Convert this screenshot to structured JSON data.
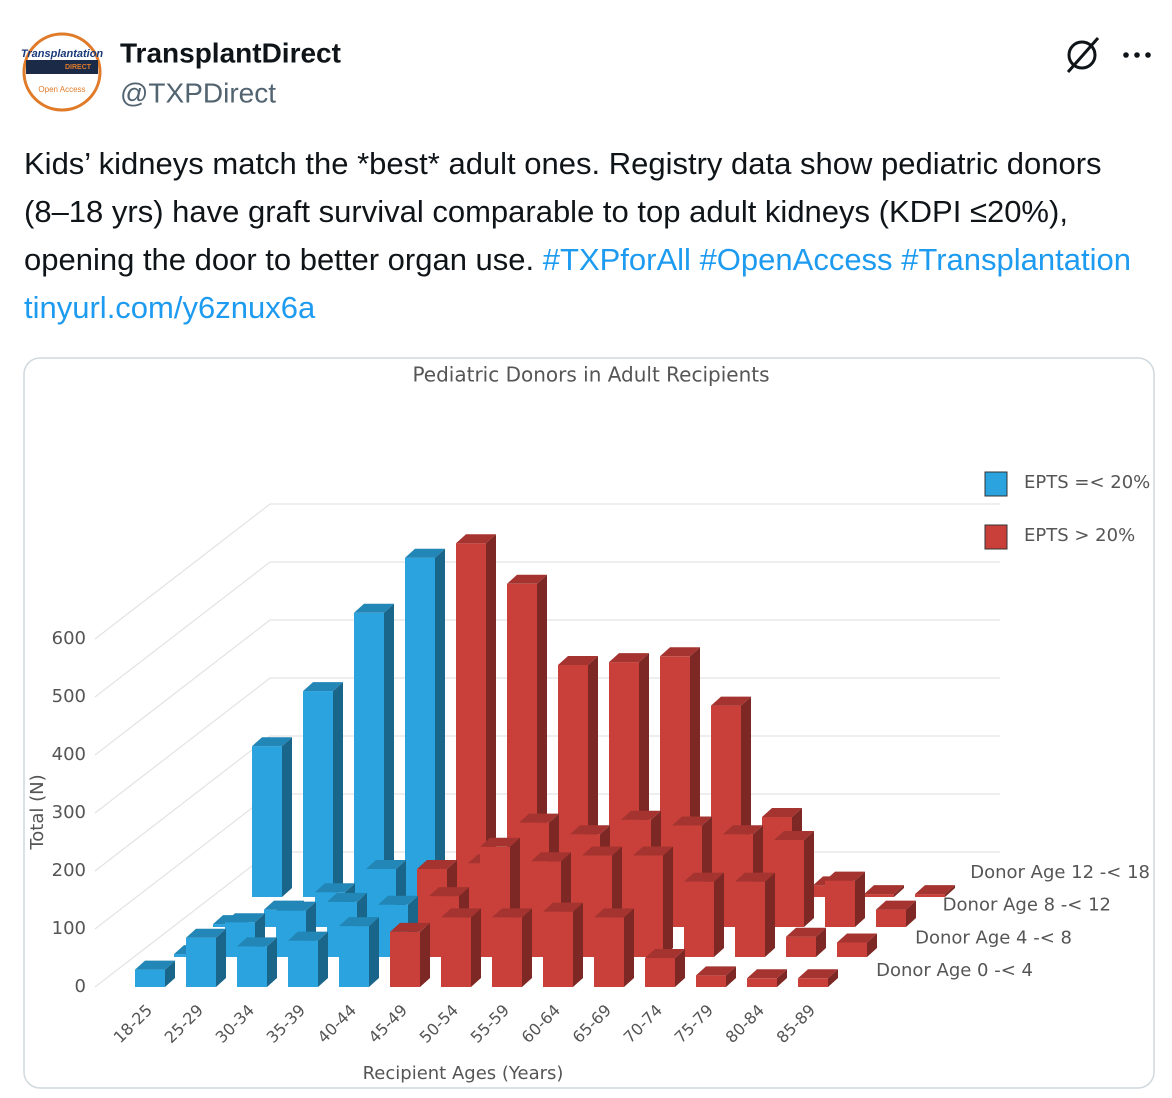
{
  "tweet": {
    "author": {
      "name": "TransplantDirect",
      "handle": "@TXPDirect"
    },
    "avatar": {
      "line1": "Transplantation",
      "line2": "DIRECT",
      "line3": "Open Access"
    },
    "body": [
      {
        "text": "Kids’ kidneys match the *best* adult ones. Registry data show pediatric donors (8–18 yrs) have graft survival comparable to top adult kidneys (KDPI ≤20%), opening the door to better organ use. ",
        "link": false
      },
      {
        "text": "#TXPforAll",
        "link": true
      },
      {
        "text": " ",
        "link": false
      },
      {
        "text": "#OpenAccess",
        "link": true
      },
      {
        "text": " ",
        "link": false
      },
      {
        "text": "#Transplantation",
        "link": true
      },
      {
        "text": " ",
        "link": false
      },
      {
        "text": "tinyurl.com/y6znux6a",
        "link": true
      }
    ]
  },
  "chart_data": {
    "type": "bar3d",
    "title": "Pediatric Donors in Adult Recipients",
    "x_label": "Recipient Ages (Years)",
    "y_label": "Total (N)",
    "categories": [
      "18-25",
      "25-29",
      "30-34",
      "35-39",
      "40-44",
      "45-49",
      "50-54",
      "55-59",
      "60-64",
      "65-69",
      "70-74",
      "75-79",
      "80-84",
      "85-89"
    ],
    "ylim": [
      0,
      700
    ],
    "yticks": [
      0,
      100,
      200,
      300,
      400,
      500,
      600
    ],
    "grid": true,
    "legend": [
      {
        "name": "EPTS =< 20%",
        "color": "#2aa3de"
      },
      {
        "name": "EPTS > 20%",
        "color": "#c9403a"
      }
    ],
    "series": [
      {
        "name": "Donor Age 0 -< 4",
        "values": [
          30,
          85,
          70,
          80,
          105,
          95,
          120,
          120,
          130,
          120,
          50,
          20,
          15,
          15
        ],
        "colors": [
          "#2aa3de",
          "#2aa3de",
          "#2aa3de",
          "#2aa3de",
          "#2aa3de",
          "#c9403a",
          "#c9403a",
          "#c9403a",
          "#c9403a",
          "#c9403a",
          "#c9403a",
          "#c9403a",
          "#c9403a",
          "#c9403a"
        ]
      },
      {
        "name": "Donor Age 4 -< 8",
        "values": [
          5,
          60,
          80,
          95,
          90,
          105,
          190,
          165,
          175,
          175,
          130,
          130,
          35,
          25
        ],
        "colors": [
          "#2aa3de",
          "#2aa3de",
          "#2aa3de",
          "#2aa3de",
          "#2aa3de",
          "#c9403a",
          "#c9403a",
          "#c9403a",
          "#c9403a",
          "#c9403a",
          "#c9403a",
          "#c9403a",
          "#c9403a",
          "#c9403a"
        ]
      },
      {
        "name": "Donor Age 8 -< 12",
        "values": [
          5,
          30,
          60,
          100,
          100,
          110,
          180,
          160,
          185,
          175,
          160,
          150,
          80,
          30
        ],
        "colors": [
          "#2aa3de",
          "#2aa3de",
          "#2aa3de",
          "#2aa3de",
          "#c9403a",
          "#c9403a",
          "#c9403a",
          "#c9403a",
          "#c9403a",
          "#c9403a",
          "#c9403a",
          "#c9403a",
          "#c9403a",
          "#c9403a"
        ]
      },
      {
        "name": "Donor Age 12 -< 18",
        "values": [
          260,
          355,
          490,
          585,
          610,
          540,
          400,
          405,
          415,
          330,
          138,
          20,
          5,
          5
        ],
        "colors": [
          "#2aa3de",
          "#2aa3de",
          "#2aa3de",
          "#2aa3de",
          "#c9403a",
          "#c9403a",
          "#c9403a",
          "#c9403a",
          "#c9403a",
          "#c9403a",
          "#c9403a",
          "#c9403a",
          "#c9403a",
          "#c9403a"
        ]
      }
    ]
  }
}
